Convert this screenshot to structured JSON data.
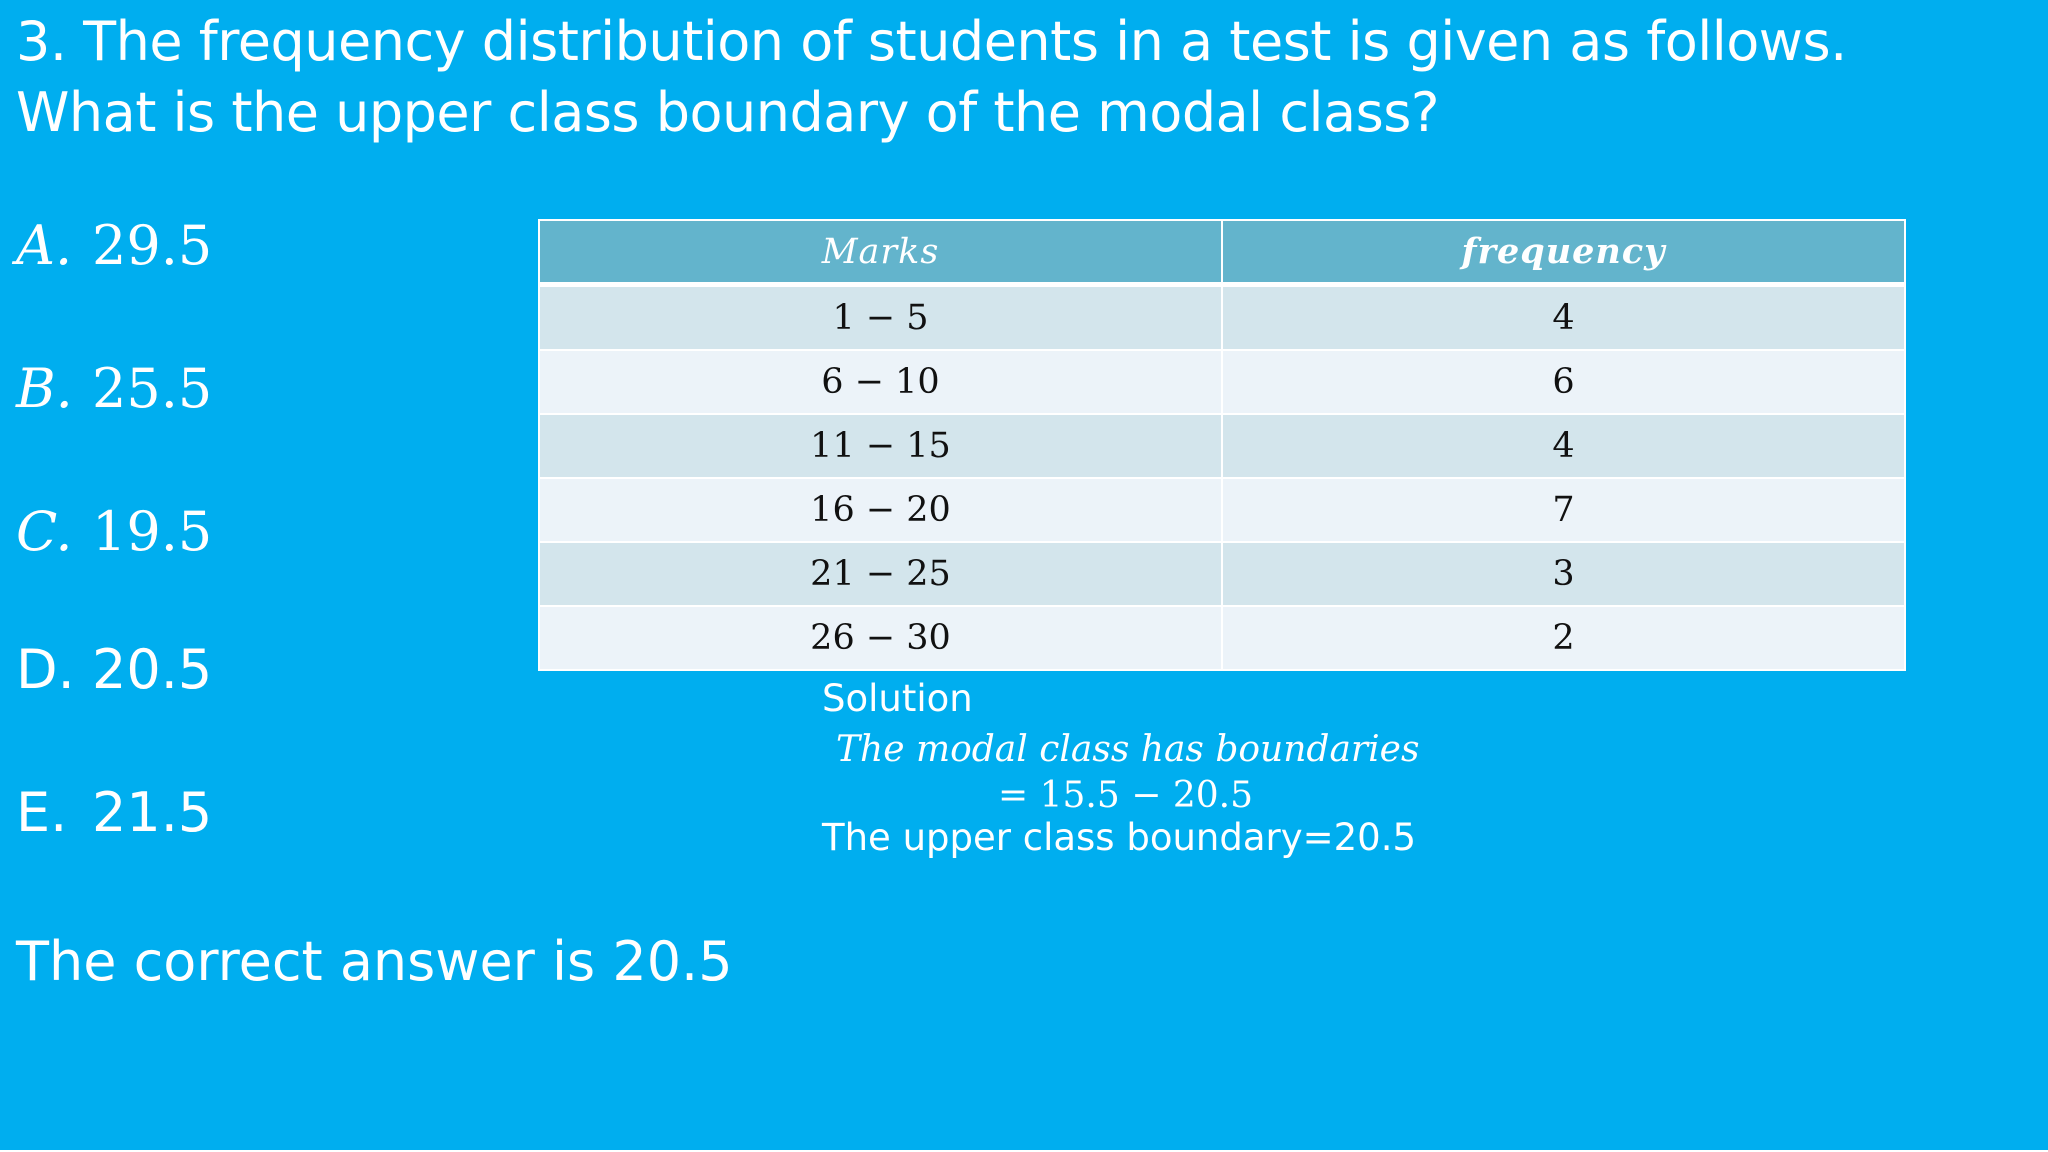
{
  "question": {
    "line1": "3. The frequency distribution of students in a test is given as follows.",
    "line2": "What is the upper class boundary of the modal class?"
  },
  "options": [
    {
      "letter": "A.",
      "value": "29.5"
    },
    {
      "letter": "B.",
      "value": "25.5"
    },
    {
      "letter": "C.",
      "value": "19.5"
    },
    {
      "letter": "D.",
      "value": "20.5"
    },
    {
      "letter": "E.",
      "value": "21.5"
    }
  ],
  "table": {
    "headers": [
      "Marks",
      "frequency"
    ],
    "rows": [
      [
        "1 − 5",
        "4"
      ],
      [
        "6 − 10",
        "6"
      ],
      [
        "11 − 15",
        "4"
      ],
      [
        "16 − 20",
        "7"
      ],
      [
        "21 − 25",
        "3"
      ],
      [
        "26 − 30",
        "2"
      ]
    ]
  },
  "solution": {
    "title": "Solution",
    "line1": "The modal class has boundaries",
    "line2": "= 15.5 − 20.5",
    "line3": "The upper class boundary=20.5"
  },
  "answer": "The correct answer is 20.5",
  "colors": {
    "background": "#00aeef",
    "table_header": "#63b4cc",
    "table_row_odd": "#d3e5ec",
    "table_row_even": "#ecf3f9"
  }
}
